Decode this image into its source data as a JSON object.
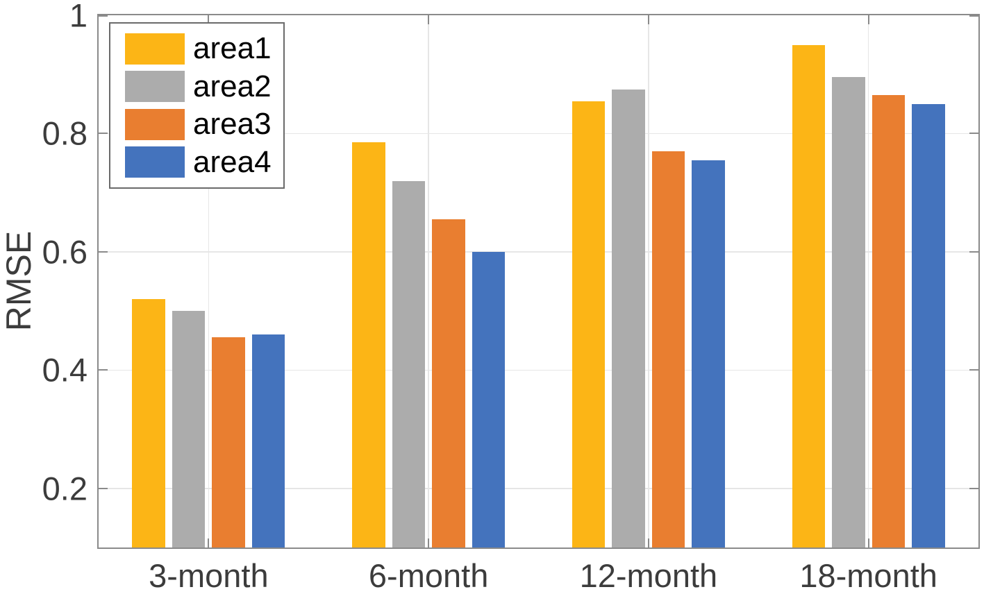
{
  "chart_data": {
    "type": "bar",
    "title": "",
    "xlabel": "",
    "ylabel": "RMSE",
    "categories": [
      "3-month",
      "6-month",
      "12-month",
      "18-month"
    ],
    "series": [
      {
        "name": "area1",
        "color": "#FCB516",
        "values": [
          0.52,
          0.785,
          0.855,
          0.95
        ]
      },
      {
        "name": "area2",
        "color": "#ACACAC",
        "values": [
          0.5,
          0.72,
          0.875,
          0.895
        ]
      },
      {
        "name": "area3",
        "color": "#E97E30",
        "values": [
          0.455,
          0.655,
          0.77,
          0.865
        ]
      },
      {
        "name": "area4",
        "color": "#4473BD",
        "values": [
          0.46,
          0.6,
          0.755,
          0.85
        ]
      }
    ],
    "ylim": [
      0.1,
      1.0
    ],
    "yticks": [
      0.2,
      0.4,
      0.6,
      0.8,
      1
    ],
    "ytick_labels": [
      "0.2",
      "0.4",
      "0.6",
      "0.8",
      "1"
    ],
    "grid": true,
    "legend_position": "top-left",
    "legend_entries": [
      "area1",
      "area2",
      "area3",
      "area4"
    ],
    "palette": {
      "axis_line": "#8A8A8A",
      "gridline": "#E6E6E6",
      "tick_text": "#3C3C3C",
      "legend_border": "#6A6A6A",
      "legend_text": "#000000",
      "background": "#FFFFFF"
    }
  }
}
